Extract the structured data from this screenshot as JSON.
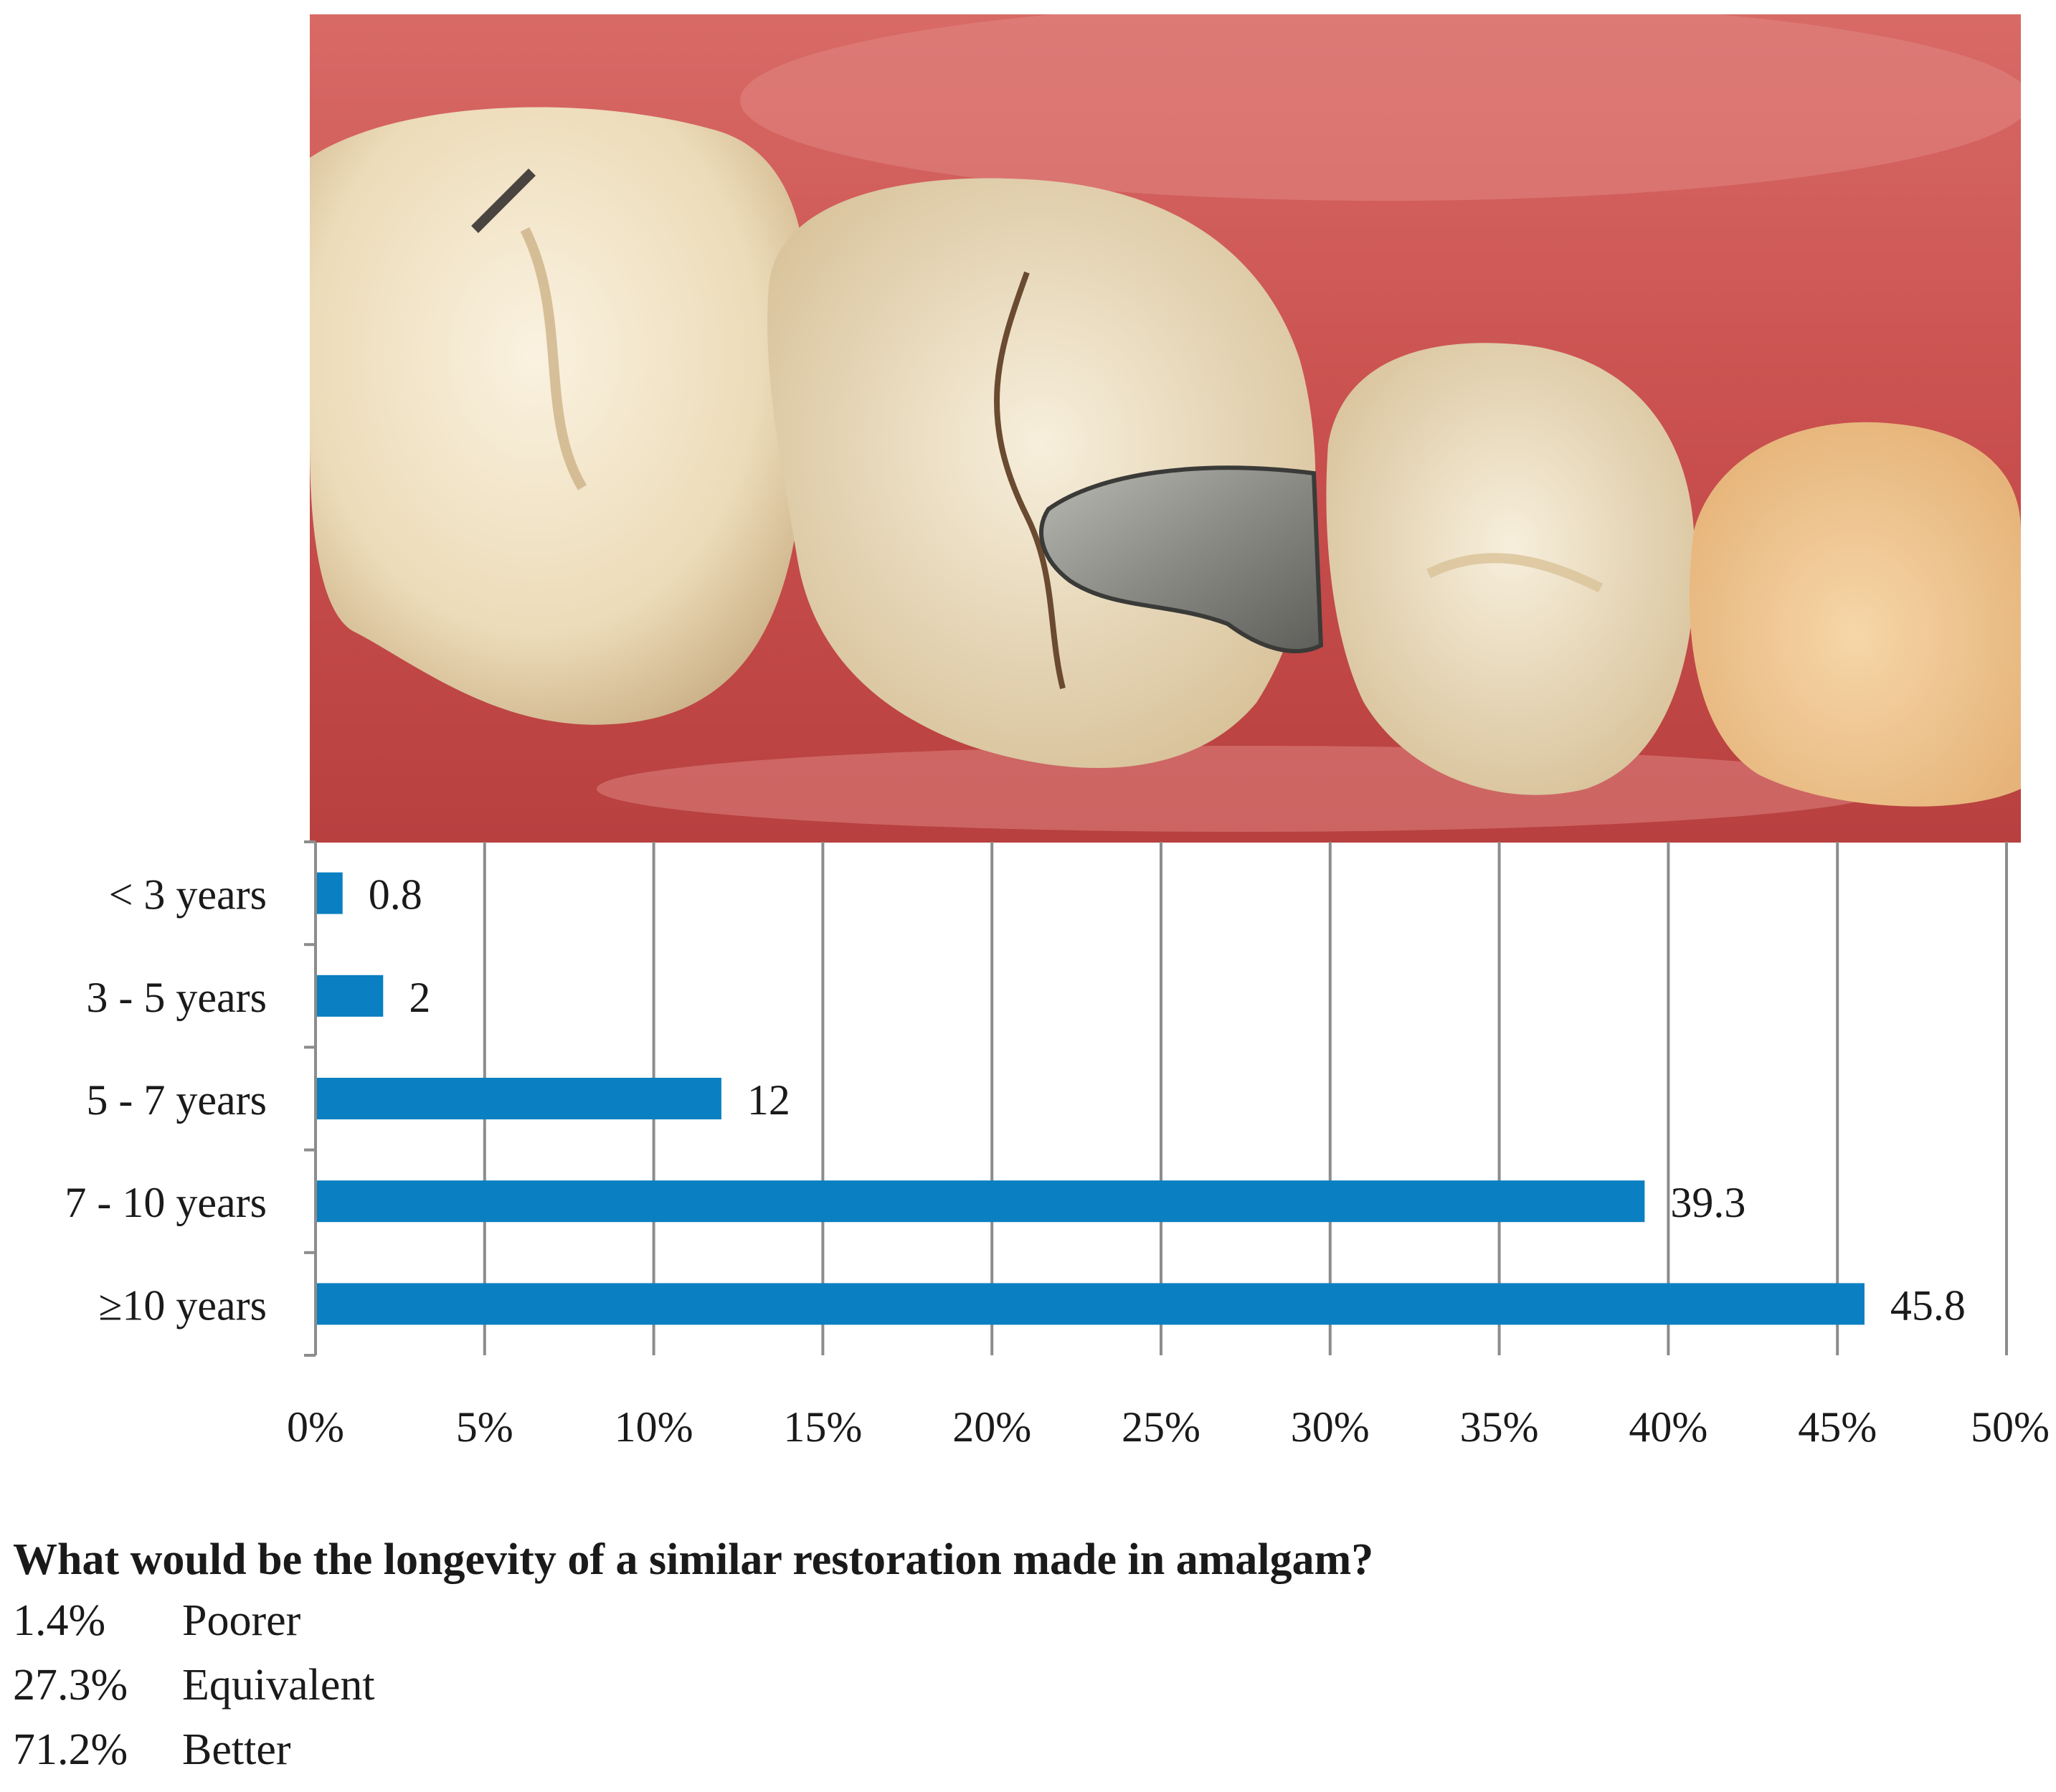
{
  "photo": {
    "description_icon": "tooth-photo-icon",
    "colors": {
      "gum": "#c9504e",
      "gum_light": "#e28a86",
      "enamel": "#f3e6cc",
      "enamel_shadow": "#d7c09a",
      "amalgam": "#8c8c88"
    }
  },
  "chart_data": {
    "type": "bar",
    "orientation": "horizontal",
    "categories": [
      "< 3 years",
      "3 - 5 years",
      "5 - 7 years",
      "7 - 10 years",
      "≥10 years"
    ],
    "values": [
      0.8,
      2,
      12,
      39.3,
      45.8
    ],
    "value_labels": [
      "0.8",
      "2",
      "12",
      "39.3",
      "45.8"
    ],
    "xlim": [
      0,
      50
    ],
    "xticks": [
      0,
      5,
      10,
      15,
      20,
      25,
      30,
      35,
      40,
      45,
      50
    ],
    "xtick_labels": [
      "0%",
      "5%",
      "10%",
      "15%",
      "20%",
      "25%",
      "30%",
      "35%",
      "40%",
      "45%",
      "50%"
    ],
    "grid": "vertical",
    "legend": "none",
    "bar_color": "#0a7fc2",
    "grid_color": "#8c8c8c"
  },
  "question": {
    "title": "What would be the longevity of a similar restoration made in amalgam?",
    "answers": [
      {
        "pct": "1.4%",
        "label": "Poorer"
      },
      {
        "pct": "27.3%",
        "label": "Equivalent"
      },
      {
        "pct": "71.2%",
        "label": "Better"
      }
    ]
  }
}
